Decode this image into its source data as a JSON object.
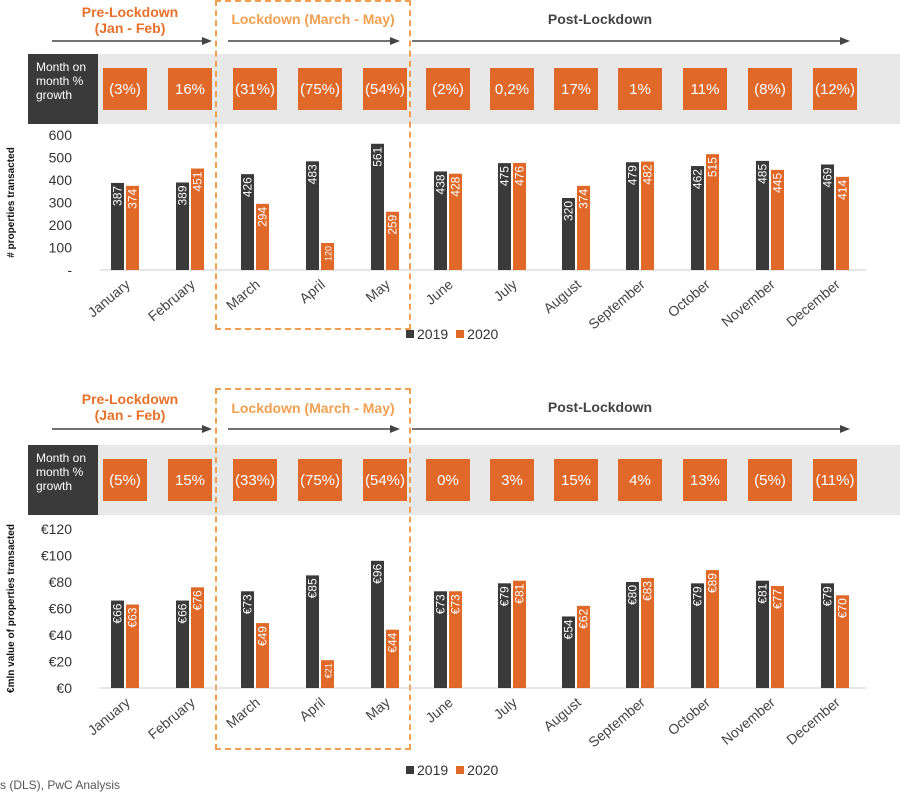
{
  "phases": {
    "pre": "Pre-Lockdown",
    "pre_sub": "(Jan - Feb)",
    "lock": "Lockdown (March - May)",
    "post": "Post-Lockdown"
  },
  "growth_label_lines": [
    "Month on",
    "month %",
    "growth"
  ],
  "legend": {
    "series1": "2019",
    "series2": "2020"
  },
  "source_text": "s (DLS), PwC Analysis",
  "colors": {
    "s2019": "#3a3a3a",
    "s2020": "#e0692a",
    "accent": "#f0a050"
  },
  "chart_data": [
    {
      "type": "bar",
      "ylabel": "# properties transacted",
      "ylim": [
        0,
        600
      ],
      "yticks": [
        "-",
        "100",
        "200",
        "300",
        "400",
        "500",
        "600"
      ],
      "categories": [
        "January",
        "February",
        "March",
        "April",
        "May",
        "June",
        "July",
        "August",
        "September",
        "October",
        "November",
        "December"
      ],
      "growth": [
        "(3%)",
        "16%",
        "(31%)",
        "(75%)",
        "(54%)",
        "(2%)",
        "0,2%",
        "17%",
        "1%",
        "11%",
        "(8%)",
        "(12%)"
      ],
      "series": [
        {
          "name": "2019",
          "values": [
            387,
            389,
            426,
            483,
            561,
            438,
            475,
            320,
            479,
            462,
            485,
            469
          ],
          "labels": [
            "387",
            "389",
            "426",
            "483",
            "561",
            "438",
            "475",
            "320",
            "479",
            "462",
            "485",
            "469"
          ]
        },
        {
          "name": "2020",
          "values": [
            374,
            451,
            294,
            120,
            259,
            428,
            476,
            374,
            482,
            515,
            445,
            414
          ],
          "labels": [
            "374",
            "451",
            "294",
            "120",
            "259",
            "428",
            "476",
            "374",
            "482",
            "515",
            "445",
            "414"
          ]
        }
      ]
    },
    {
      "type": "bar",
      "ylabel": "€mln value of properties transacted",
      "ylim": [
        0,
        120
      ],
      "yticks": [
        "€0",
        "€20",
        "€40",
        "€60",
        "€80",
        "€100",
        "€120"
      ],
      "categories": [
        "January",
        "February",
        "March",
        "April",
        "May",
        "June",
        "July",
        "August",
        "September",
        "October",
        "November",
        "December"
      ],
      "growth": [
        "(5%)",
        "15%",
        "(33%)",
        "(75%)",
        "(54%)",
        "0%",
        "3%",
        "15%",
        "4%",
        "13%",
        "(5%)",
        "(11%)"
      ],
      "series": [
        {
          "name": "2019",
          "values": [
            66,
            66,
            73,
            85,
            96,
            73,
            79,
            54,
            80,
            79,
            81,
            79
          ],
          "labels": [
            "€66",
            "€66",
            "€73",
            "€85",
            "€96",
            "€73",
            "€79",
            "€54",
            "€80",
            "€79",
            "€81",
            "€79"
          ]
        },
        {
          "name": "2020",
          "values": [
            63,
            76,
            49,
            21,
            44,
            73,
            81,
            62,
            83,
            89,
            77,
            70
          ],
          "labels": [
            "€63",
            "€76",
            "€49",
            "€21",
            "€44",
            "€73",
            "€81",
            "€62",
            "€83",
            "€89",
            "€77",
            "€70"
          ]
        }
      ]
    }
  ]
}
